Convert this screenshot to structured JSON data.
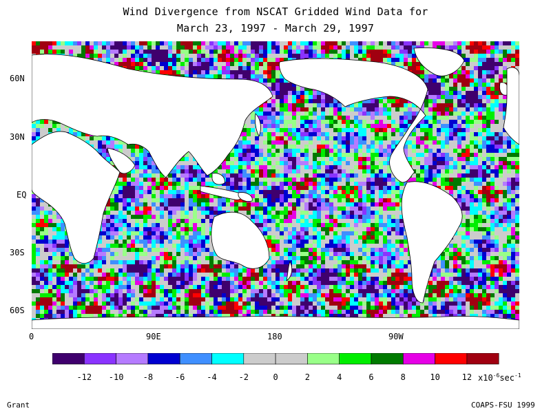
{
  "title": {
    "line1": "Wind Divergence from NSCAT Gridded Wind Data for",
    "line2": "March 23, 1997 - March 29, 1997"
  },
  "map": {
    "projection": "cylindrical equidistant",
    "lon_range": [
      0,
      360
    ],
    "lat_range": [
      -75,
      75
    ],
    "lat_labels": [
      "60N",
      "30N",
      "EQ",
      "30S",
      "60S"
    ],
    "lon_labels": [
      "0",
      "90E",
      "180",
      "90W"
    ]
  },
  "colorbar": {
    "colors": [
      "#3f006d",
      "#8a33ff",
      "#b57bff",
      "#0000d0",
      "#3f8fff",
      "#00ffff",
      "#cccccc",
      "#cccccc",
      "#99ff88",
      "#00ee00",
      "#007a00",
      "#e600e6",
      "#ff0000",
      "#a00010"
    ],
    "labels": [
      "-12",
      "-10",
      "-8",
      "-6",
      "-4",
      "-2",
      "0",
      "2",
      "4",
      "6",
      "8",
      "10",
      "12"
    ],
    "units_base": "x10",
    "units_exp": "-6",
    "units_tail": "sec",
    "units_tail_exp": "-1"
  },
  "footer": {
    "left": "Grant",
    "right": "COAPS-FSU 1999"
  }
}
